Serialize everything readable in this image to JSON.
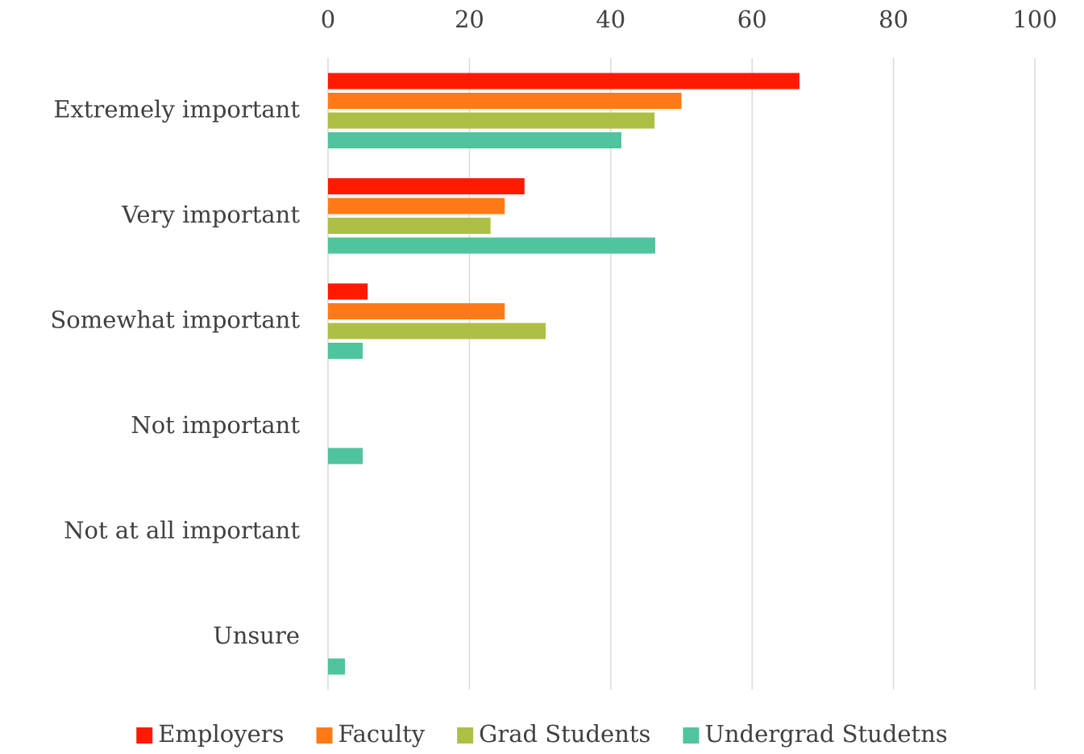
{
  "chart_data": {
    "type": "hbar",
    "categories": [
      "Extremely important",
      "Very important",
      "Somewhat important",
      "Not important",
      "Not at all important",
      "Unsure"
    ],
    "series": [
      {
        "name": "Employers",
        "color": "#ff1a00",
        "values": [
          66.7,
          27.8,
          5.6,
          0,
          0,
          0
        ]
      },
      {
        "name": "Faculty",
        "color": "#ff7a17",
        "values": [
          50,
          25,
          25,
          0,
          0,
          0
        ]
      },
      {
        "name": "Grad Students",
        "color": "#afbf45",
        "values": [
          46.2,
          23,
          30.8,
          0,
          0,
          0
        ]
      },
      {
        "name": "Undergrad Studetns",
        "color": "#4fc49e",
        "values": [
          41.5,
          46.3,
          4.9,
          4.9,
          0,
          2.4
        ]
      }
    ],
    "xlim": [
      0,
      100
    ],
    "xticks": [
      0,
      20,
      40,
      60,
      80,
      100
    ],
    "grid": true,
    "legend": "bottom"
  }
}
